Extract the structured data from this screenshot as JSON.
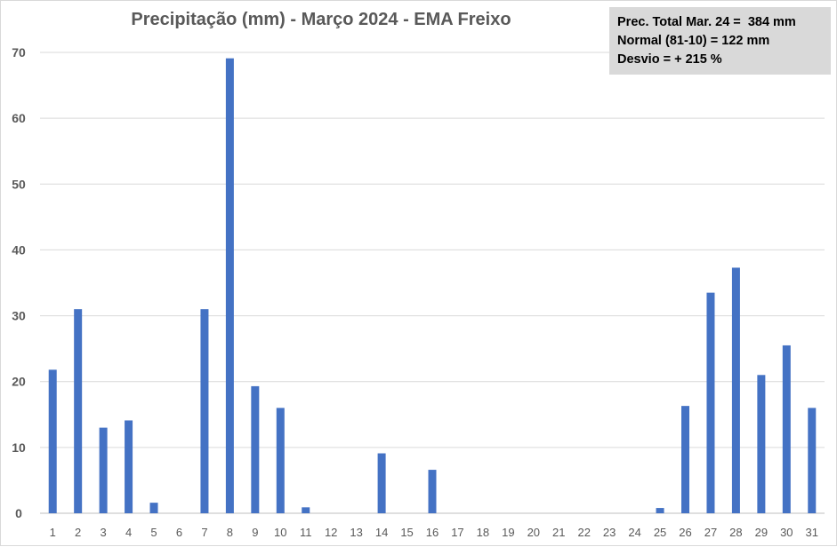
{
  "chart_data": {
    "type": "bar",
    "title": "Precipitação (mm) - Março 2024 - EMA Freixo",
    "xlabel": "",
    "ylabel": "",
    "ylim": [
      0,
      70
    ],
    "yticks": [
      0,
      10,
      20,
      30,
      40,
      50,
      60,
      70
    ],
    "grid": true,
    "legend": "none",
    "bar_color": "#4472c4",
    "categories": [
      "1",
      "2",
      "3",
      "4",
      "5",
      "6",
      "7",
      "8",
      "9",
      "10",
      "11",
      "12",
      "13",
      "14",
      "15",
      "16",
      "17",
      "18",
      "19",
      "20",
      "21",
      "22",
      "23",
      "24",
      "25",
      "26",
      "27",
      "28",
      "29",
      "30",
      "31"
    ],
    "values": [
      21.8,
      31.0,
      13.0,
      14.1,
      1.6,
      0,
      31.0,
      69.1,
      19.3,
      16.0,
      0.9,
      0,
      0,
      9.1,
      0,
      6.6,
      0,
      0,
      0,
      0,
      0,
      0,
      0,
      0,
      0.8,
      16.3,
      33.5,
      37.3,
      21.0,
      25.5,
      16.0
    ],
    "annotation": {
      "lines": [
        "Prec. Total Mar. 24 =  384 mm",
        "Normal (81-10) = 122 mm",
        "Desvio = + 215 %"
      ]
    }
  }
}
